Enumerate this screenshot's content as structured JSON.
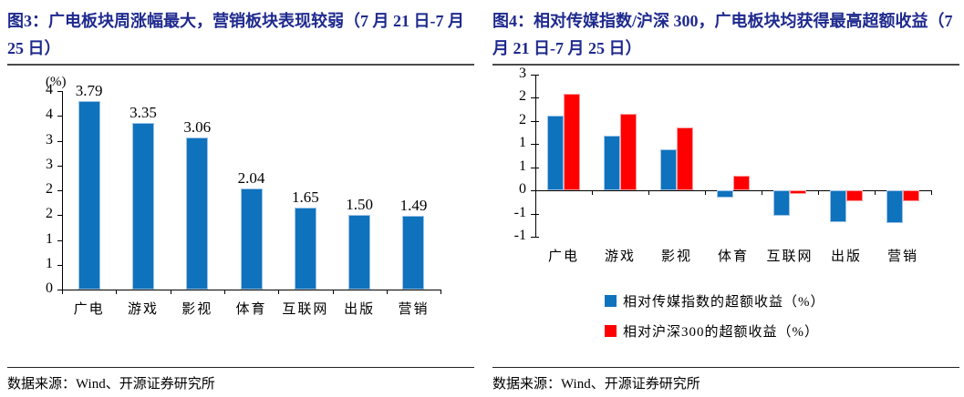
{
  "accent_colors": {
    "title_navy": "#1f2a8e",
    "bar_blue": "#0F72BD",
    "bar_blue_border": "#9DC3E6",
    "bar_red": "#FE0000",
    "bar_red_border": "#FF9999",
    "axis_black": "#000000"
  },
  "chart_data": [
    {
      "type": "bar",
      "title": "图3：广电板块周涨幅最大，营销板块表现较弱（7 月 21 日-7 月 25 日）",
      "unit_label": "(%)",
      "categories": [
        "广电",
        "游戏",
        "影视",
        "体育",
        "互联网",
        "出版",
        "营销"
      ],
      "values": [
        3.79,
        3.35,
        3.06,
        2.04,
        1.65,
        1.5,
        1.49
      ],
      "data_labels": [
        "3.79",
        "3.35",
        "3.06",
        "2.04",
        "1.65",
        "1.50",
        "1.49"
      ],
      "ylim": [
        0,
        4
      ],
      "ytick_step": 0.5,
      "yticks": [
        {
          "v": 4.0,
          "label": "4"
        },
        {
          "v": 3.5,
          "label": "4"
        },
        {
          "v": 3.0,
          "label": "3"
        },
        {
          "v": 2.5,
          "label": "3"
        },
        {
          "v": 2.0,
          "label": "2"
        },
        {
          "v": 1.5,
          "label": "2"
        },
        {
          "v": 1.0,
          "label": "1"
        },
        {
          "v": 0.5,
          "label": "1"
        },
        {
          "v": 0.0,
          "label": "0"
        }
      ],
      "bar_color": "#0F72BD",
      "bar_border": "#9DC3E6",
      "grid": false,
      "source": "数据来源：Wind、开源证券研究所"
    },
    {
      "type": "bar",
      "grouped": true,
      "title": "图4：相对传媒指数/沪深 300，广电板块均获得最高超额收益（7 月 21 日-7 月 25 日）",
      "categories": [
        "广电",
        "游戏",
        "影视",
        "体育",
        "互联网",
        "出版",
        "营销"
      ],
      "series": [
        {
          "name": "相对传媒指数的超额收益（%）",
          "color": "#0F72BD",
          "border": "#9DC3E6",
          "values": [
            1.62,
            1.18,
            0.88,
            -0.15,
            -0.55,
            -0.69,
            -0.71
          ]
        },
        {
          "name": "相对沪深300的超额收益（%）",
          "color": "#FE0000",
          "border": "#FF9999",
          "values": [
            2.09,
            1.65,
            1.36,
            0.31,
            -0.08,
            -0.24,
            -0.24
          ]
        }
      ],
      "ylim": [
        -1.0,
        2.5
      ],
      "ytick_step": 0.5,
      "yticks": [
        {
          "v": 2.5,
          "label": "3"
        },
        {
          "v": 2.0,
          "label": "2"
        },
        {
          "v": 1.5,
          "label": "2"
        },
        {
          "v": 1.0,
          "label": "1"
        },
        {
          "v": 0.5,
          "label": "1"
        },
        {
          "v": 0.0,
          "label": "0"
        },
        {
          "v": -0.5,
          "label": "-1"
        },
        {
          "v": -1.0,
          "label": "-1"
        }
      ],
      "legend_position": "bottom",
      "grid": false,
      "source": "数据来源：Wind、开源证券研究所"
    }
  ]
}
